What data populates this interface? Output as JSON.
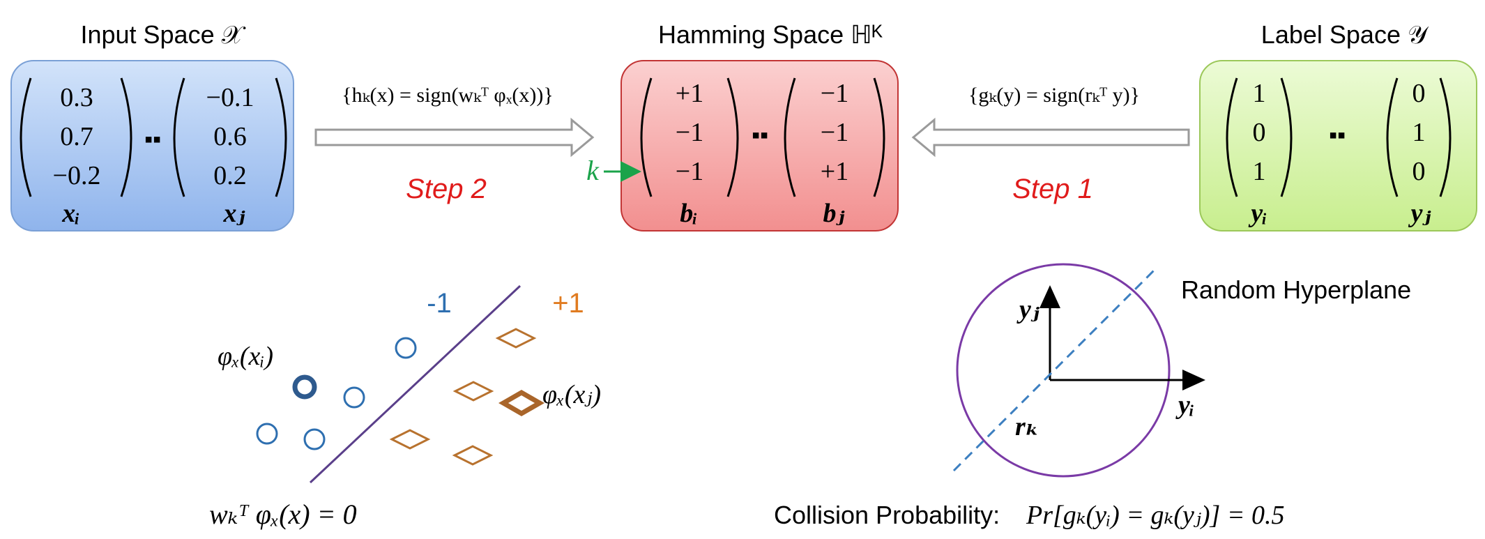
{
  "input_space": {
    "title": "Input Space 𝒳",
    "vec_i": [
      "0.3",
      "0.7",
      "−0.2"
    ],
    "vec_j": [
      "−0.1",
      "0.6",
      "0.2"
    ],
    "label_i": "xᵢ",
    "label_j": "xⱼ",
    "color": "#a9c8f2"
  },
  "hamming_space": {
    "title": "Hamming Space ℍᴷ",
    "vec_i": [
      "+1",
      "−1",
      "−1"
    ],
    "vec_j": [
      "−1",
      "−1",
      "+1"
    ],
    "label_i": "bᵢ",
    "label_j": "bⱼ",
    "k_label": "k",
    "color": "#f6a8a8"
  },
  "label_space": {
    "title": "Label Space 𝒴",
    "vec_i": [
      "1",
      "0",
      "1"
    ],
    "vec_j": [
      "0",
      "1",
      "0"
    ],
    "label_i": "yᵢ",
    "label_j": "yⱼ",
    "color": "#d6f3a8"
  },
  "dots": "▪▪",
  "step2": {
    "label": "Step 2",
    "formula": "{hₖ(x) = sign(wₖᵀ φₓ(x))}"
  },
  "step1": {
    "label": "Step 1",
    "formula": "{gₖ(y) = sign(rₖᵀ y)}"
  },
  "classifier": {
    "neg_label": "-1",
    "pos_label": "+1",
    "phi_xi": "φₓ(xᵢ)",
    "phi_xj": "φₓ(xⱼ)",
    "equation": "wₖᵀ φₓ(x) = 0",
    "neg_color": "#2e6fb0",
    "pos_color": "#e07b20"
  },
  "hyperplane": {
    "title": "Random Hyperplane",
    "y_j": "yⱼ",
    "y_i": "yᵢ",
    "r_k": "rₖ",
    "collision_prefix": "Collision Probability:",
    "collision_formula": "Pr[gₖ(yᵢ) = gₖ(yⱼ)] = 0.5",
    "circle_color": "#7a3aa6",
    "plane_color": "#3c7fc0"
  },
  "step_color": "#e01b1b",
  "k_color": "#1aa34a"
}
